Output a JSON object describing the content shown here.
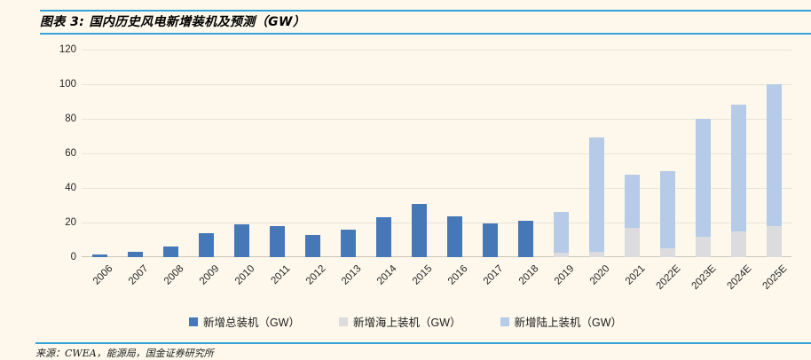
{
  "header": {
    "title": "图表 3: 国内历史风电新增装机及预测（GW）"
  },
  "footer": {
    "source": "来源：CWEA，能源局，国金证券研究所"
  },
  "colors": {
    "background": "#FDF8EB",
    "accent_rule": "#35A2DA",
    "total_bar": "#4678B8",
    "offshore_bar": "#DCDCDE",
    "onshore_bar": "#B5CBE7",
    "gridline": "#E7E4DB",
    "axis_line": "#C9C6BD"
  },
  "chart_data": {
    "type": "bar",
    "stacked": true,
    "title": "图表 3: 国内历史风电新增装机及预测（GW）",
    "xlabel": "",
    "ylabel": "",
    "ylim": [
      0,
      120
    ],
    "yticks": [
      0,
      20,
      40,
      60,
      80,
      100,
      120
    ],
    "grid": true,
    "legend_position": "bottom",
    "categories": [
      "2006",
      "2007",
      "2008",
      "2009",
      "2010",
      "2011",
      "2012",
      "2013",
      "2014",
      "2015",
      "2016",
      "2017",
      "2018",
      "2019",
      "2020",
      "2021",
      "2022E",
      "2023E",
      "2024E",
      "2025E"
    ],
    "series": [
      {
        "name": "新增总装机（GW）",
        "color_key": "total_bar",
        "values": [
          1.3,
          3.3,
          6.2,
          14,
          19,
          18,
          13,
          16,
          23.2,
          30.8,
          23.4,
          19.7,
          21,
          null,
          null,
          null,
          null,
          null,
          null,
          null
        ]
      },
      {
        "name": "新增海上装机（GW）",
        "color_key": "offshore_bar",
        "values": [
          null,
          null,
          null,
          null,
          null,
          null,
          null,
          null,
          null,
          null,
          null,
          null,
          null,
          2.4,
          3,
          16.9,
          5,
          12,
          15,
          18
        ]
      },
      {
        "name": "新增陆上装机（GW）",
        "color_key": "onshore_bar",
        "values": [
          null,
          null,
          null,
          null,
          null,
          null,
          null,
          null,
          null,
          null,
          null,
          null,
          null,
          23.6,
          66,
          30.6,
          45,
          68,
          73,
          82
        ]
      }
    ]
  }
}
